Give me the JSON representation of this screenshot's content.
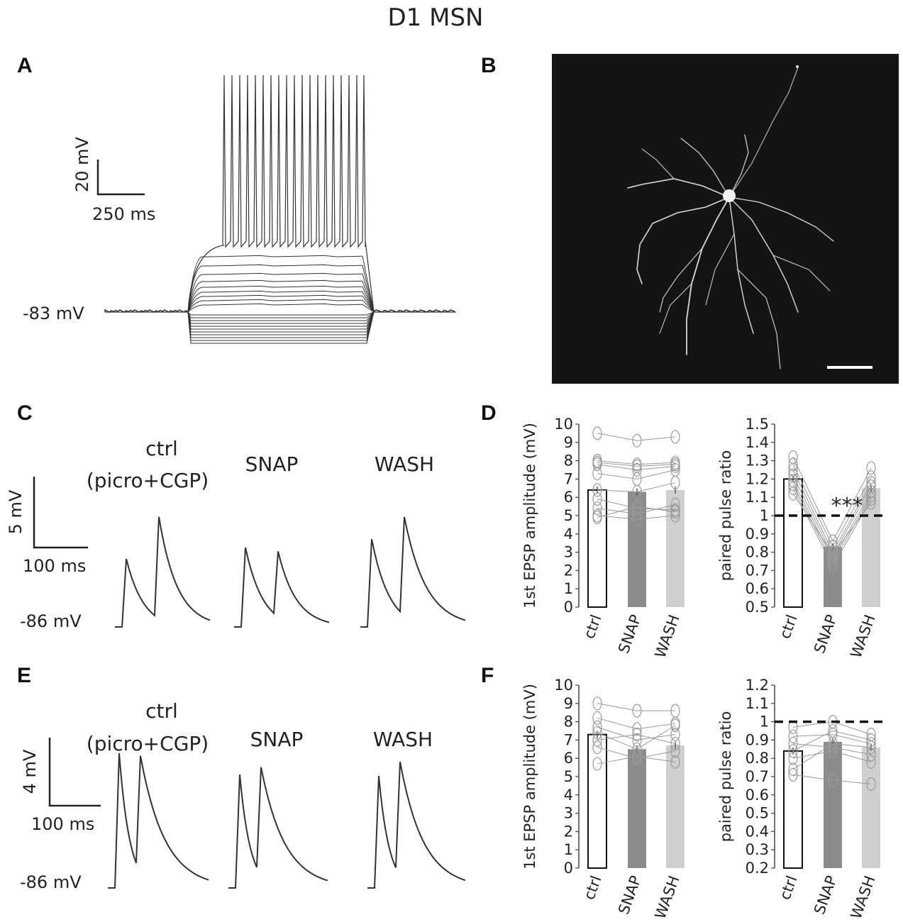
{
  "title": "D1 MSN",
  "panels": {
    "A": {
      "letter": "A",
      "scale_v": "20 mV",
      "scale_t": "250 ms",
      "rest_label": "-83 mV"
    },
    "B": {
      "letter": "B"
    },
    "C": {
      "letter": "C",
      "cond1_line1": "ctrl",
      "cond1_line2": "(picro+CGP)",
      "cond2": "SNAP",
      "cond3": "WASH",
      "scale_v": "5 mV",
      "scale_t": "100 ms",
      "rest_label": "-86 mV"
    },
    "D": {
      "letter": "D"
    },
    "E": {
      "letter": "E",
      "cond1_line1": "ctrl",
      "cond1_line2": "(picro+CGP)",
      "cond2": "SNAP",
      "cond3": "WASH",
      "scale_v": "4 mV",
      "scale_t": "100 ms",
      "rest_label": "-86 mV"
    },
    "F": {
      "letter": "F"
    }
  },
  "colors": {
    "ctrl": "#ffffff",
    "snap": "#8c8c8c",
    "wash": "#cfcfcf",
    "trace": "#333333",
    "micrograph_bg": "#141414"
  },
  "chart_data": [
    {
      "id": "D-amp",
      "type": "bar",
      "categories": [
        "ctrl",
        "SNAP",
        "WASH"
      ],
      "values": [
        6.4,
        6.3,
        6.4
      ],
      "ylabel": "1st EPSP amplitude (mV)",
      "ylim": [
        0,
        10
      ],
      "yticks": [
        "0",
        "1",
        "2",
        "3",
        "4",
        "5",
        "6",
        "7",
        "8",
        "9",
        "10"
      ],
      "refline": null,
      "annotation": "",
      "individuals": [
        [
          9.5,
          9.1,
          9.3
        ],
        [
          8.0,
          7.8,
          7.9
        ],
        [
          7.9,
          7.7,
          7.8
        ],
        [
          7.8,
          7.5,
          7.7
        ],
        [
          7.3,
          7.0,
          7.5
        ],
        [
          6.4,
          6.3,
          6.8
        ],
        [
          5.9,
          5.4,
          5.3
        ],
        [
          5.4,
          5.1,
          5.6
        ],
        [
          5.0,
          4.8,
          5.0
        ],
        [
          4.9,
          5.5,
          5.2
        ]
      ]
    },
    {
      "id": "D-ppr",
      "type": "bar",
      "categories": [
        "ctrl",
        "SNAP",
        "WASH"
      ],
      "values": [
        1.2,
        0.83,
        1.15
      ],
      "ylabel": "paired pulse ratio",
      "ylim": [
        0.5,
        1.5
      ],
      "yticks": [
        "0.5",
        "0.6",
        "0.7",
        "0.8",
        "0.9",
        "1",
        "1.1",
        "1.2",
        "1.3",
        "1.4",
        "1.5"
      ],
      "refline": 1,
      "annotation": "***",
      "individuals": [
        [
          1.32,
          0.86,
          1.26
        ],
        [
          1.28,
          0.83,
          1.21
        ],
        [
          1.25,
          0.8,
          1.18
        ],
        [
          1.22,
          0.78,
          1.16
        ],
        [
          1.19,
          0.76,
          1.13
        ],
        [
          1.17,
          0.74,
          1.11
        ],
        [
          1.15,
          0.72,
          1.09
        ],
        [
          1.12,
          0.79,
          1.07
        ]
      ]
    },
    {
      "id": "F-amp",
      "type": "bar",
      "categories": [
        "ctrl",
        "SNAP",
        "WASH"
      ],
      "values": [
        7.3,
        6.5,
        6.7
      ],
      "ylabel": "1st EPSP amplitude (mV)",
      "ylim": [
        0,
        10
      ],
      "yticks": [
        "0",
        "1",
        "2",
        "3",
        "4",
        "5",
        "6",
        "7",
        "8",
        "9",
        "10"
      ],
      "refline": null,
      "annotation": "",
      "individuals": [
        [
          9.0,
          8.6,
          8.6
        ],
        [
          8.2,
          7.6,
          7.9
        ],
        [
          7.7,
          7.0,
          7.3
        ],
        [
          7.4,
          6.5,
          7.8
        ],
        [
          7.0,
          7.3,
          6.8
        ],
        [
          6.6,
          6.0,
          6.4
        ],
        [
          5.7,
          6.1,
          5.8
        ]
      ]
    },
    {
      "id": "F-ppr",
      "type": "bar",
      "categories": [
        "ctrl",
        "SNAP",
        "WASH"
      ],
      "values": [
        0.84,
        0.89,
        0.86
      ],
      "ylabel": "paired pulse ratio",
      "ylim": [
        0.2,
        1.2
      ],
      "yticks": [
        "0.2",
        "0.3",
        "0.4",
        "0.5",
        "0.6",
        "0.7",
        "0.8",
        "0.9",
        "1",
        "1.1",
        "1.2"
      ],
      "refline": 1,
      "annotation": "",
      "individuals": [
        [
          0.97,
          1.0,
          0.93
        ],
        [
          0.92,
          0.93,
          0.88
        ],
        [
          0.88,
          0.86,
          0.82
        ],
        [
          0.84,
          0.95,
          0.9
        ],
        [
          0.8,
          0.84,
          0.78
        ],
        [
          0.74,
          0.88,
          0.86
        ],
        [
          0.71,
          0.68,
          0.66
        ]
      ]
    }
  ]
}
